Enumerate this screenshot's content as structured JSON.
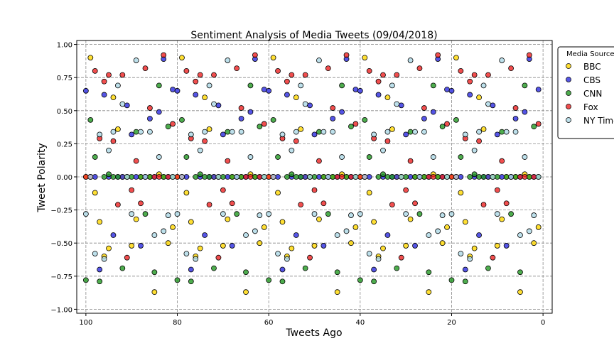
{
  "chart_data": {
    "type": "scatter",
    "title": "Sentiment Analysis of Media Tweets (09/04/2018)",
    "x_label": "Tweets Ago",
    "y_label": "Tweet Polarity",
    "legend_title": "Media Sources",
    "legend_position": "outside-upper-right",
    "grid": true,
    "xlim": [
      102,
      -2
    ],
    "ylim": [
      -1.03,
      1.03
    ],
    "xticks": [
      100,
      80,
      60,
      40,
      20,
      0
    ],
    "yticks": [
      {
        "value": -1,
        "label": "−1.00"
      },
      {
        "value": -0.75,
        "label": "−0.75"
      },
      {
        "value": -0.5,
        "label": "−0.50"
      },
      {
        "value": -0.25,
        "label": "−0.25"
      },
      {
        "value": 0,
        "label": "0.00"
      },
      {
        "value": 0.25,
        "label": "0.25"
      },
      {
        "value": 0.5,
        "label": "0.50"
      },
      {
        "value": 0.75,
        "label": "0.75"
      },
      {
        "value": 1,
        "label": "1.00"
      }
    ],
    "x": [
      100,
      99,
      98,
      97,
      96,
      95,
      94,
      93,
      92,
      91,
      90,
      89,
      88,
      87,
      86,
      85,
      84,
      83,
      82,
      81,
      80,
      79,
      78,
      77,
      76,
      75,
      74,
      73,
      72,
      71,
      70,
      69,
      68,
      67,
      66,
      65,
      64,
      63,
      62,
      61,
      60,
      59,
      58,
      57,
      56,
      55,
      54,
      53,
      52,
      51,
      50,
      49,
      48,
      47,
      46,
      45,
      44,
      43,
      42,
      41,
      40,
      39,
      38,
      37,
      36,
      35,
      34,
      33,
      32,
      31,
      30,
      29,
      28,
      27,
      26,
      25,
      24,
      23,
      22,
      21,
      20,
      19,
      18,
      17,
      16,
      15,
      14,
      13,
      12,
      11,
      10,
      9,
      8,
      7,
      6,
      5,
      4,
      3,
      2,
      1
    ],
    "series": [
      {
        "name": "BBC",
        "color": "#ffd700",
        "values": [
          0,
          0.9,
          -0.12,
          -0.34,
          -0.6,
          -0.54,
          0.6,
          0.36,
          0,
          0,
          -0.52,
          -0.32,
          0,
          0,
          0,
          -0.87,
          0.02,
          0,
          -0.5,
          -0.38,
          0,
          0.9,
          -0.12,
          -0.34,
          -0.6,
          -0.54,
          0.6,
          0.36,
          0,
          0,
          -0.52,
          -0.32,
          0,
          0,
          0,
          -0.87,
          0.02,
          0,
          -0.5,
          -0.38,
          0,
          0.9,
          -0.12,
          -0.34,
          -0.6,
          -0.54,
          0.6,
          0.36,
          0,
          0,
          -0.52,
          -0.32,
          0,
          0,
          0,
          -0.87,
          0.02,
          0,
          -0.5,
          -0.38,
          0,
          0.9,
          -0.12,
          -0.34,
          -0.6,
          -0.54,
          0.6,
          0.36,
          0,
          0,
          -0.52,
          -0.32,
          0,
          0,
          0,
          -0.87,
          0.02,
          0,
          -0.5,
          -0.38,
          0,
          0.9,
          -0.12,
          -0.34,
          -0.6,
          -0.54,
          0.6,
          0.36,
          0,
          0,
          -0.52,
          -0.32,
          0,
          0,
          0,
          -0.87,
          0.02,
          0,
          -0.5,
          -0.38
        ]
      },
      {
        "name": "CBS",
        "color": "#2a2ae0",
        "values": [
          0.65,
          0,
          0,
          -0.7,
          0.62,
          0,
          -0.44,
          0,
          0,
          0.54,
          0.32,
          0,
          -0.52,
          0,
          0.44,
          0,
          0.49,
          0.89,
          0,
          0.66,
          0.65,
          0,
          0,
          -0.7,
          0.62,
          0,
          -0.44,
          0,
          0,
          0.54,
          0.32,
          0,
          -0.52,
          0,
          0.44,
          0,
          0.49,
          0.89,
          0,
          0.66,
          0.65,
          0,
          0,
          -0.7,
          0.62,
          0,
          -0.44,
          0,
          0,
          0.54,
          0.32,
          0,
          -0.52,
          0,
          0.44,
          0,
          0.49,
          0.89,
          0,
          0.66,
          0.65,
          0,
          0,
          -0.7,
          0.62,
          0,
          -0.44,
          0,
          0,
          0.54,
          0.32,
          0,
          -0.52,
          0,
          0.44,
          0,
          0.49,
          0.89,
          0,
          0.66,
          0.65,
          0,
          0,
          -0.7,
          0.62,
          0,
          -0.44,
          0,
          0,
          0.54,
          0.32,
          0,
          -0.52,
          0,
          0.44,
          0,
          0.49,
          0.89,
          0,
          0.66
        ]
      },
      {
        "name": "CNN",
        "color": "#229922",
        "values": [
          -0.78,
          0.43,
          0.15,
          -0.79,
          0,
          0.02,
          0,
          0,
          -0.69,
          0,
          0,
          0.34,
          0,
          -0.28,
          0,
          -0.72,
          0.69,
          0,
          0.38,
          0,
          -0.78,
          0.43,
          0.15,
          -0.79,
          0,
          0.02,
          0,
          0,
          -0.69,
          0,
          0,
          0.34,
          0,
          -0.28,
          0,
          -0.72,
          0.69,
          0,
          0.38,
          0,
          -0.78,
          0.43,
          0.15,
          -0.79,
          0,
          0.02,
          0,
          0,
          -0.69,
          0,
          0,
          0.34,
          0,
          -0.28,
          0,
          -0.72,
          0.69,
          0,
          0.38,
          0,
          -0.78,
          0.43,
          0.15,
          -0.79,
          0,
          0.02,
          0,
          0,
          -0.69,
          0,
          0,
          0.34,
          0,
          -0.28,
          0,
          -0.72,
          0.69,
          0,
          0.38,
          0,
          -0.78,
          0.43,
          0.15,
          -0.79,
          0,
          0.02,
          0,
          0,
          -0.69,
          0,
          0,
          0.34,
          0,
          -0.28,
          0,
          -0.72,
          0.69,
          0,
          0.38,
          0
        ]
      },
      {
        "name": "Fox",
        "color": "#ee2222",
        "values": [
          0,
          0,
          0.8,
          0.29,
          0.72,
          0.77,
          0.27,
          -0.21,
          0.77,
          -0.61,
          -0.1,
          0.12,
          -0.2,
          0.82,
          0.52,
          0,
          0,
          0.92,
          0,
          0.4,
          0,
          0,
          0.8,
          0.29,
          0.72,
          0.77,
          0.27,
          -0.21,
          0.77,
          -0.61,
          -0.1,
          0.12,
          -0.2,
          0.82,
          0.52,
          0,
          0,
          0.92,
          0,
          0.4,
          0,
          0,
          0.8,
          0.29,
          0.72,
          0.77,
          0.27,
          -0.21,
          0.77,
          -0.61,
          -0.1,
          0.12,
          -0.2,
          0.82,
          0.52,
          0,
          0,
          0.92,
          0,
          0.4,
          0,
          0,
          0.8,
          0.29,
          0.72,
          0.77,
          0.27,
          -0.21,
          0.77,
          -0.61,
          -0.1,
          0.12,
          -0.2,
          0.82,
          0.52,
          0,
          0,
          0.92,
          0,
          0.4,
          0,
          0,
          0.8,
          0.29,
          0.72,
          0.77,
          0.27,
          -0.21,
          0.77,
          -0.61,
          -0.1,
          0.12,
          -0.2,
          0.82,
          0.52,
          0,
          0,
          0.92,
          0,
          0.4
        ]
      },
      {
        "name": "NY Times",
        "color": "#add8e6",
        "values": [
          -0.28,
          0,
          -0.58,
          0.32,
          -0.62,
          0.2,
          0.34,
          0.69,
          0.55,
          0,
          -0.28,
          0.88,
          0.34,
          0,
          0.34,
          -0.44,
          0.15,
          -0.41,
          -0.29,
          0,
          -0.28,
          0,
          -0.58,
          0.32,
          -0.62,
          0.2,
          0.34,
          0.69,
          0.55,
          0,
          -0.28,
          0.88,
          0.34,
          0,
          0.34,
          -0.44,
          0.15,
          -0.41,
          -0.29,
          0,
          -0.28,
          0,
          -0.58,
          0.32,
          -0.62,
          0.2,
          0.34,
          0.69,
          0.55,
          0,
          -0.28,
          0.88,
          0.34,
          0,
          0.34,
          -0.44,
          0.15,
          -0.41,
          -0.29,
          0,
          -0.28,
          0,
          -0.58,
          0.32,
          -0.62,
          0.2,
          0.34,
          0.69,
          0.55,
          0,
          -0.28,
          0.88,
          0.34,
          0,
          0.34,
          -0.44,
          0.15,
          -0.41,
          -0.29,
          0,
          -0.28,
          0,
          -0.58,
          0.32,
          -0.62,
          0.2,
          0.34,
          0.69,
          0.55,
          0,
          -0.28,
          0.88,
          0.34,
          0,
          0.34,
          -0.44,
          0.15,
          -0.41,
          -0.29,
          0
        ]
      }
    ]
  }
}
